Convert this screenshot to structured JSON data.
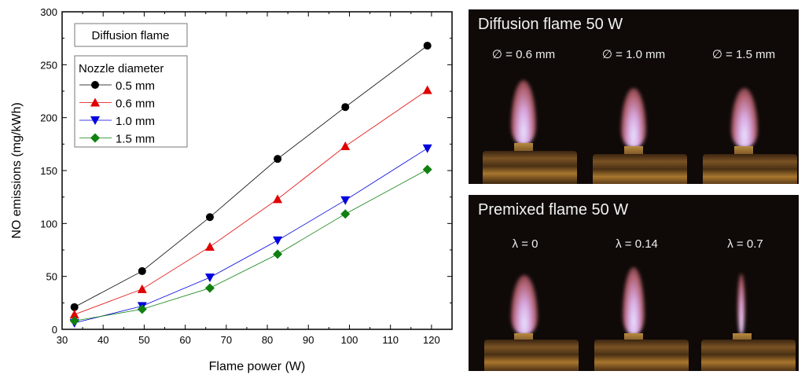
{
  "chart_data": {
    "type": "line",
    "title": "",
    "xlabel": "Flame power (W)",
    "ylabel": "NO emissions (mg/kWh)",
    "xlim": [
      30,
      125
    ],
    "ylim": [
      0,
      300
    ],
    "xticks": [
      30,
      40,
      50,
      60,
      70,
      80,
      90,
      100,
      110,
      120
    ],
    "yticks": [
      0,
      50,
      100,
      150,
      200,
      250,
      300
    ],
    "x": [
      33,
      49.5,
      66,
      82.5,
      99,
      119
    ],
    "annotation": "Diffusion flame",
    "legend_title": "Nozzle diameter",
    "legend_position": "top-left",
    "series": [
      {
        "name": "0.5 mm",
        "color": "#000000",
        "marker": "circle",
        "values": [
          21,
          55,
          106,
          161,
          210,
          268
        ]
      },
      {
        "name": "0.6 mm",
        "color": "#e00000",
        "marker": "triangle-up",
        "values": [
          14,
          38,
          78,
          123,
          173,
          226
        ]
      },
      {
        "name": "1.0 mm",
        "color": "#0000e0",
        "marker": "triangle-down",
        "values": [
          6,
          22,
          49,
          84,
          122,
          171
        ]
      },
      {
        "name": "1.5 mm",
        "color": "#108010",
        "marker": "diamond",
        "values": [
          8,
          19,
          39,
          71,
          109,
          151
        ]
      }
    ]
  },
  "photos": {
    "diffusion": {
      "title": "Diffusion flame 50 W",
      "labels": [
        "∅  = 0.6 mm",
        "∅  = 1.0 mm",
        "∅  = 1.5 mm"
      ]
    },
    "premixed": {
      "title": "Premixed flame 50 W",
      "labels": [
        "λ = 0",
        "λ = 0.14",
        "λ = 0.7"
      ]
    }
  }
}
